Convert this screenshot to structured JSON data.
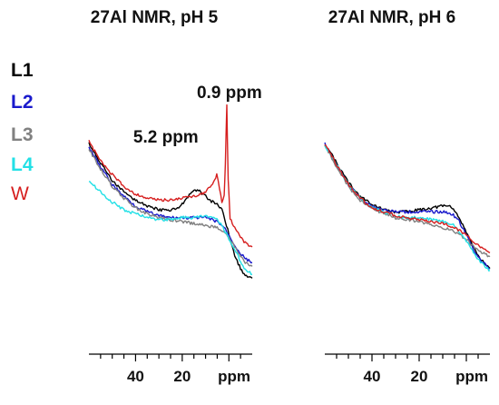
{
  "chart_data": [
    {
      "type": "line",
      "title": "27Al NMR, pH 5",
      "xlabel": "ppm",
      "x_reversed": true,
      "xlim": [
        60,
        -10
      ],
      "ylim": [
        0,
        100
      ],
      "xticks": [
        {
          "value": 40,
          "label": "40"
        },
        {
          "value": 20,
          "label": "20"
        }
      ],
      "annotations": [
        {
          "text": "5.2 ppm",
          "x": 5.2
        },
        {
          "text": "0.9 ppm",
          "x": 0.9
        }
      ],
      "series": [
        {
          "name": "L1",
          "color": "#000000",
          "points": [
            [
              60,
              80
            ],
            [
              55,
              70
            ],
            [
              50,
              61
            ],
            [
              45,
              55
            ],
            [
              40,
              51
            ],
            [
              35,
              48
            ],
            [
              30,
              46
            ],
            [
              25,
              46
            ],
            [
              22,
              47
            ],
            [
              19,
              50
            ],
            [
              16,
              55
            ],
            [
              13,
              56
            ],
            [
              10,
              53
            ],
            [
              7,
              50
            ],
            [
              5,
              49
            ],
            [
              3,
              46
            ],
            [
              1,
              38
            ],
            [
              -1,
              29
            ],
            [
              -3,
              21
            ],
            [
              -5,
              16
            ],
            [
              -7,
              12
            ],
            [
              -10,
              11
            ]
          ]
        },
        {
          "name": "L2",
          "color": "#1a1acc",
          "points": [
            [
              60,
              78
            ],
            [
              55,
              68
            ],
            [
              50,
              59
            ],
            [
              45,
              53
            ],
            [
              40,
              48
            ],
            [
              35,
              45
            ],
            [
              30,
              43
            ],
            [
              25,
              42
            ],
            [
              20,
              42
            ],
            [
              15,
              42
            ],
            [
              10,
              42
            ],
            [
              5,
              40
            ],
            [
              2,
              37
            ],
            [
              -1,
              31
            ],
            [
              -4,
              25
            ],
            [
              -7,
              21
            ],
            [
              -10,
              19
            ]
          ]
        },
        {
          "name": "L3",
          "color": "#808080",
          "points": [
            [
              60,
              77
            ],
            [
              55,
              67
            ],
            [
              50,
              58
            ],
            [
              45,
              52
            ],
            [
              40,
              47
            ],
            [
              35,
              44
            ],
            [
              30,
              42
            ],
            [
              25,
              41
            ],
            [
              20,
              40
            ],
            [
              15,
              39
            ],
            [
              10,
              38
            ],
            [
              5,
              37
            ],
            [
              2,
              35
            ],
            [
              -1,
              30
            ],
            [
              -4,
              24
            ],
            [
              -7,
              19
            ],
            [
              -10,
              17
            ]
          ]
        },
        {
          "name": "L4",
          "color": "#22e0e6",
          "points": [
            [
              60,
              61
            ],
            [
              55,
              55
            ],
            [
              50,
              50
            ],
            [
              45,
              46
            ],
            [
              40,
              44
            ],
            [
              35,
              42
            ],
            [
              30,
              41
            ],
            [
              25,
              41
            ],
            [
              20,
              42
            ],
            [
              15,
              42
            ],
            [
              10,
              43
            ],
            [
              5,
              41
            ],
            [
              2,
              36
            ],
            [
              -1,
              29
            ],
            [
              -4,
              22
            ],
            [
              -7,
              15
            ],
            [
              -10,
              13
            ]
          ]
        },
        {
          "name": "W",
          "color": "#d61e1e",
          "points": [
            [
              60,
              81
            ],
            [
              55,
              71
            ],
            [
              50,
              64
            ],
            [
              45,
              58
            ],
            [
              40,
              54
            ],
            [
              35,
              52
            ],
            [
              30,
              51
            ],
            [
              25,
              51
            ],
            [
              20,
              52
            ],
            [
              15,
              53
            ],
            [
              10,
              55
            ],
            [
              7,
              59
            ],
            [
              5.2,
              64
            ],
            [
              4,
              57
            ],
            [
              3,
              50
            ],
            [
              2,
              53
            ],
            [
              1.5,
              70
            ],
            [
              0.9,
              100
            ],
            [
              0.3,
              62
            ],
            [
              -0.5,
              42
            ],
            [
              -2,
              38
            ],
            [
              -4,
              34
            ],
            [
              -7,
              29
            ],
            [
              -10,
              27
            ]
          ]
        }
      ]
    },
    {
      "type": "line",
      "title": "27Al NMR, pH 6",
      "xlabel": "ppm",
      "x_reversed": true,
      "xlim": [
        60,
        -10
      ],
      "ylim": [
        0,
        100
      ],
      "xticks": [
        {
          "value": 40,
          "label": "40"
        },
        {
          "value": 20,
          "label": "20"
        }
      ],
      "annotations": [],
      "series": [
        {
          "name": "L1",
          "color": "#000000",
          "points": [
            [
              60,
              80
            ],
            [
              55,
              70
            ],
            [
              50,
              60
            ],
            [
              45,
              53
            ],
            [
              40,
              49
            ],
            [
              35,
              46
            ],
            [
              30,
              45
            ],
            [
              25,
              45
            ],
            [
              20,
              46
            ],
            [
              15,
              47
            ],
            [
              10,
              48
            ],
            [
              7,
              48
            ],
            [
              5,
              46
            ],
            [
              3,
              42
            ],
            [
              0,
              34
            ],
            [
              -3,
              27
            ],
            [
              -6,
              21
            ],
            [
              -10,
              16
            ]
          ]
        },
        {
          "name": "L2",
          "color": "#1a1acc",
          "points": [
            [
              60,
              80
            ],
            [
              55,
              69
            ],
            [
              50,
              59
            ],
            [
              45,
              52
            ],
            [
              40,
              48
            ],
            [
              35,
              46
            ],
            [
              30,
              45
            ],
            [
              25,
              45
            ],
            [
              20,
              45
            ],
            [
              15,
              45
            ],
            [
              10,
              45
            ],
            [
              6,
              44
            ],
            [
              3,
              40
            ],
            [
              0,
              33
            ],
            [
              -3,
              26
            ],
            [
              -6,
              20
            ],
            [
              -10,
              16
            ]
          ]
        },
        {
          "name": "L3",
          "color": "#808080",
          "points": [
            [
              60,
              79
            ],
            [
              55,
              68
            ],
            [
              50,
              58
            ],
            [
              45,
              51
            ],
            [
              40,
              47
            ],
            [
              35,
              44
            ],
            [
              30,
              42
            ],
            [
              25,
              41
            ],
            [
              20,
              40
            ],
            [
              15,
              38
            ],
            [
              10,
              37
            ],
            [
              5,
              35
            ],
            [
              0,
              31
            ],
            [
              -4,
              26
            ],
            [
              -7,
              24
            ],
            [
              -10,
              22
            ]
          ]
        },
        {
          "name": "L4",
          "color": "#22e0e6",
          "points": [
            [
              60,
              79
            ],
            [
              55,
              69
            ],
            [
              50,
              59
            ],
            [
              45,
              52
            ],
            [
              40,
              47
            ],
            [
              35,
              45
            ],
            [
              30,
              43
            ],
            [
              25,
              42
            ],
            [
              20,
              42
            ],
            [
              15,
              41
            ],
            [
              10,
              40
            ],
            [
              5,
              38
            ],
            [
              0,
              30
            ],
            [
              -3,
              24
            ],
            [
              -6,
              19
            ],
            [
              -10,
              15
            ]
          ]
        },
        {
          "name": "W",
          "color": "#d61e1e",
          "points": [
            [
              60,
              80
            ],
            [
              55,
              69
            ],
            [
              50,
              59
            ],
            [
              45,
              52
            ],
            [
              40,
              47
            ],
            [
              35,
              45
            ],
            [
              30,
              43
            ],
            [
              25,
              42
            ],
            [
              20,
              41
            ],
            [
              15,
              40
            ],
            [
              10,
              39
            ],
            [
              5,
              37
            ],
            [
              0,
              33
            ],
            [
              -4,
              29
            ],
            [
              -7,
              26
            ],
            [
              -10,
              24
            ]
          ]
        }
      ]
    }
  ]
}
